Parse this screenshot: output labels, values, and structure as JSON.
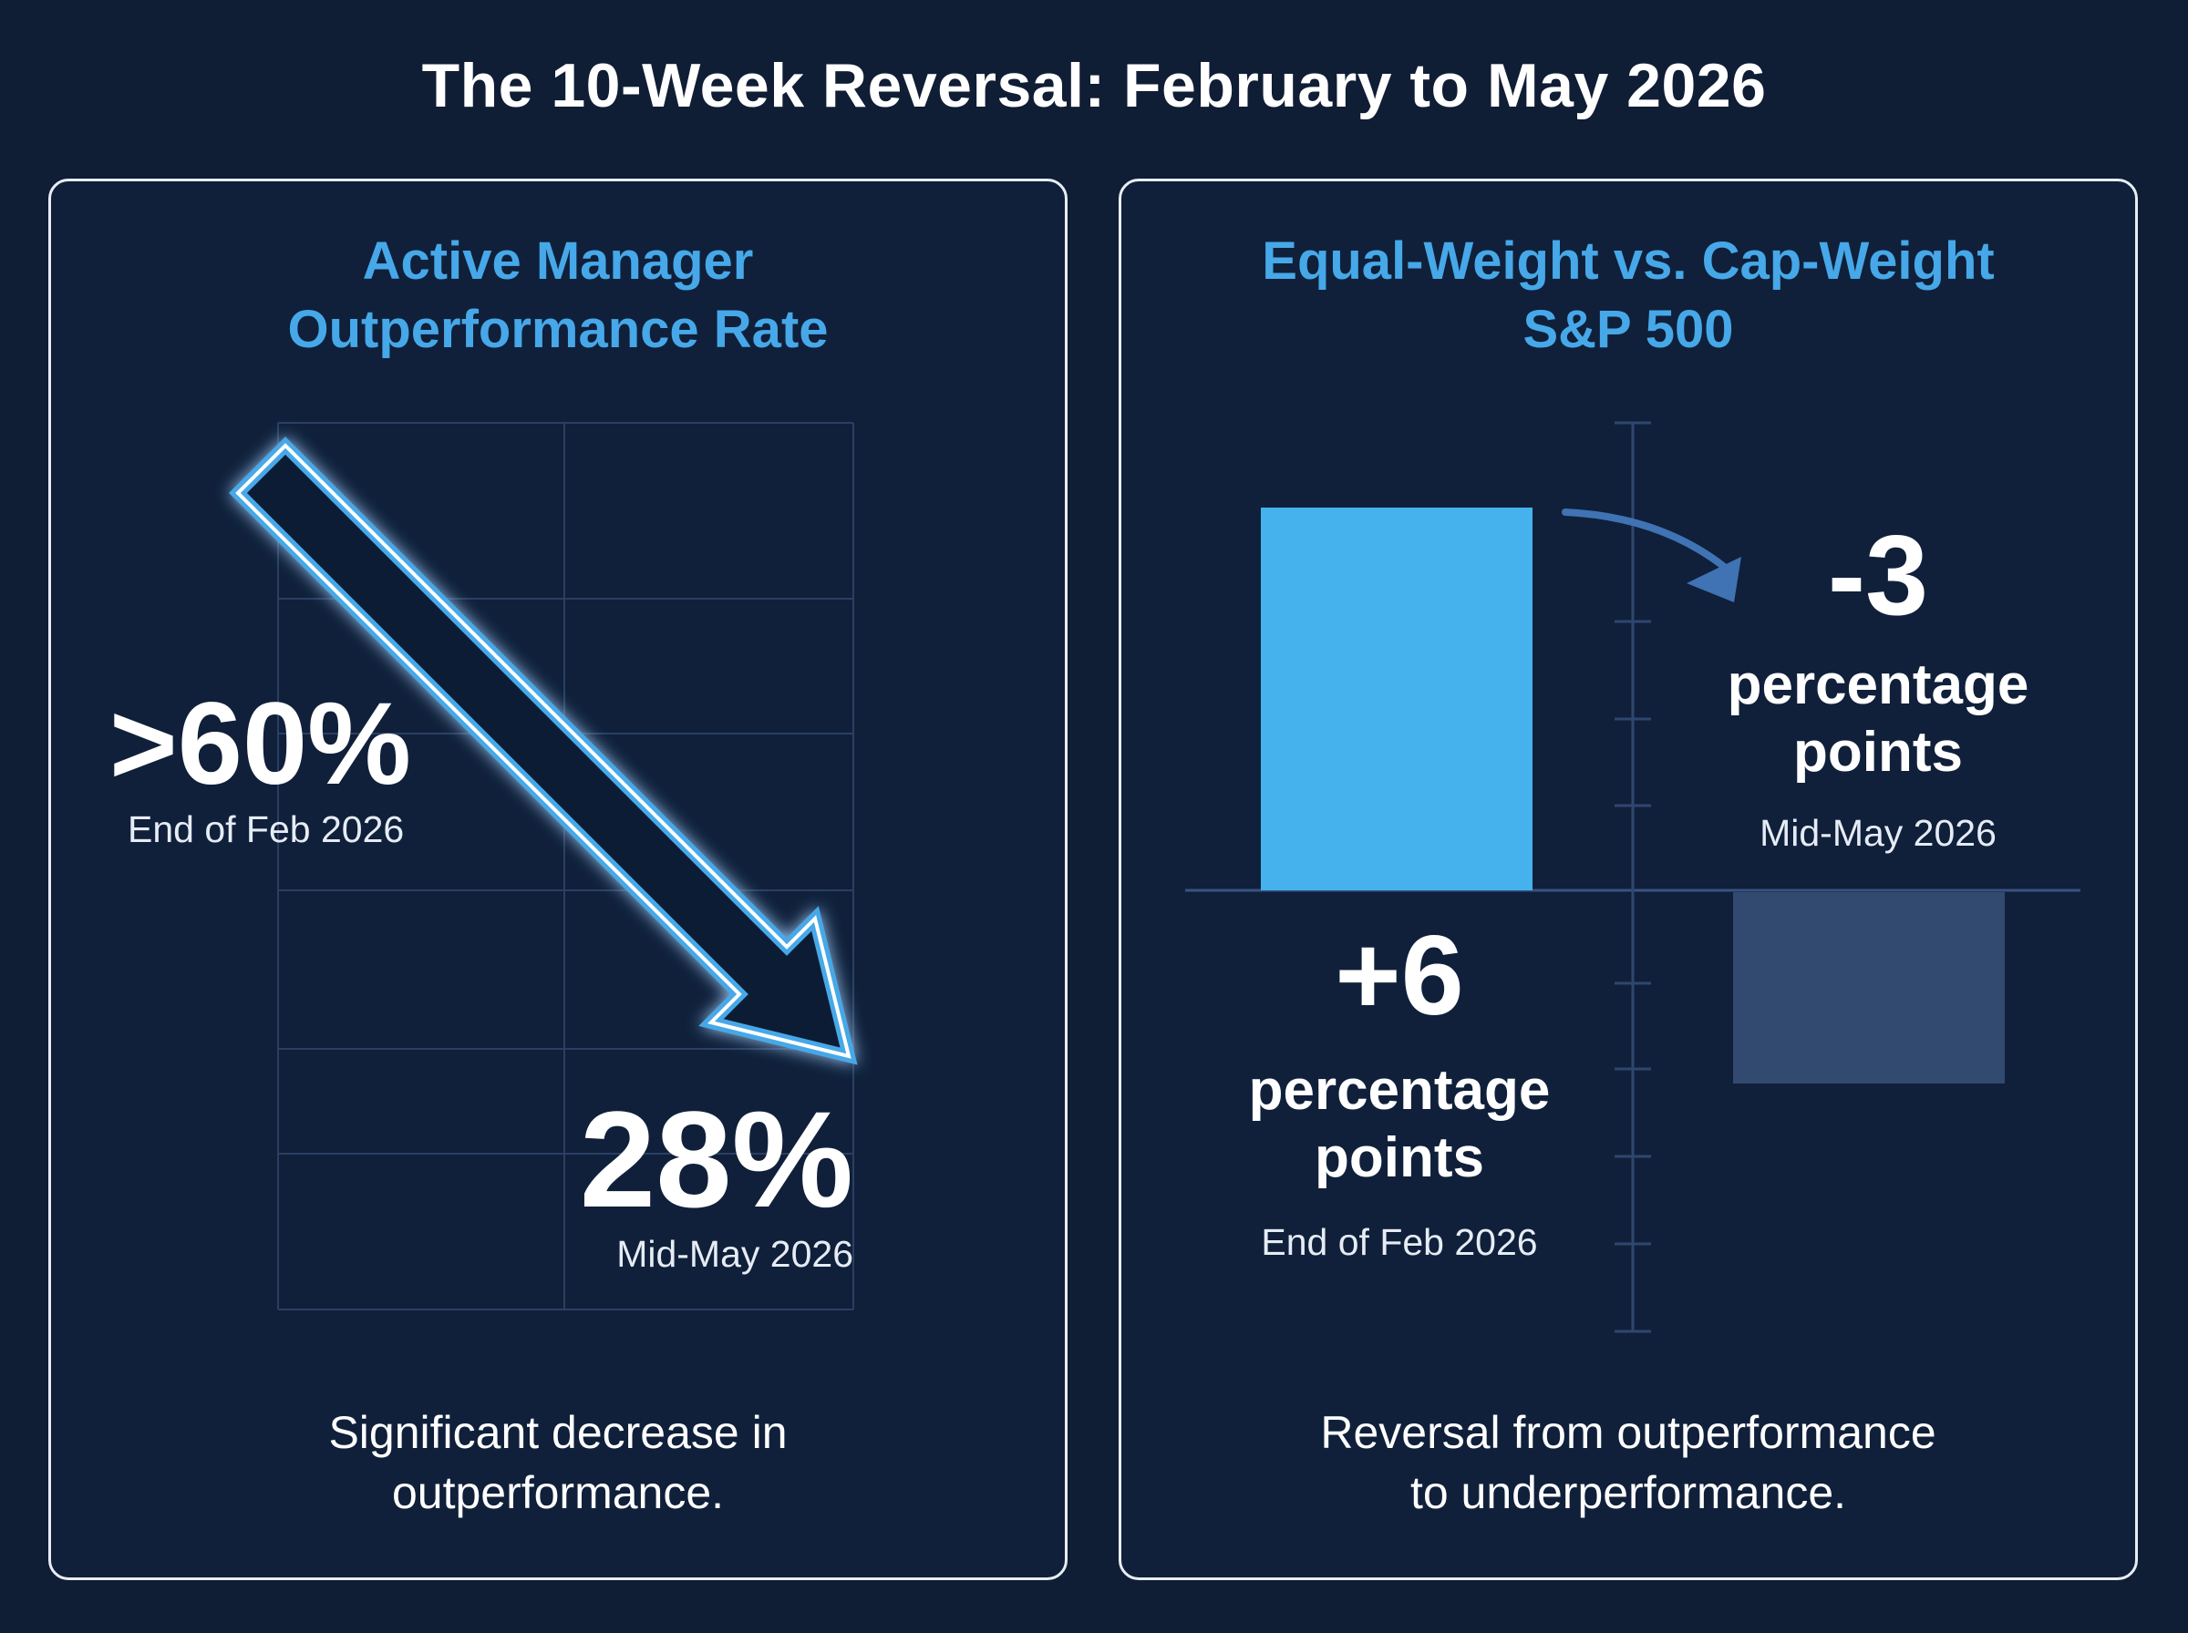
{
  "title": "The 10-Week Reversal: February to May 2026",
  "colors": {
    "background": "#0f1d35",
    "accent_blue": "#46a8e8",
    "bar_feb": "#45b2ee",
    "bar_may": "#334a70",
    "grid": "#2a3f63"
  },
  "chart_data": [
    {
      "type": "line",
      "title": "Active Manager Outperformance Rate",
      "title_lines": [
        "Active Manager",
        "Outperformance Rate"
      ],
      "points": [
        {
          "x": "End of Feb 2026",
          "value_label": ">60%",
          "value": 60
        },
        {
          "x": "Mid-May 2026",
          "value_label": "28%",
          "value": 28
        }
      ],
      "trend": "down-arrow",
      "grid": true,
      "caption_lines": [
        "Significant decrease in",
        "outperformance."
      ]
    },
    {
      "type": "bar",
      "title": "Equal-Weight vs. Cap-Weight S&P 500",
      "title_lines": [
        "Equal-Weight vs. Cap-Weight",
        "S&P 500"
      ],
      "categories": [
        "End of Feb 2026",
        "Mid-May 2026"
      ],
      "values": [
        6,
        -3
      ],
      "value_labels": [
        "+6",
        "-3"
      ],
      "unit_lines": [
        "percentage",
        "points"
      ],
      "caption_lines": [
        "Reversal from outperformance",
        "to underperformance."
      ]
    }
  ]
}
